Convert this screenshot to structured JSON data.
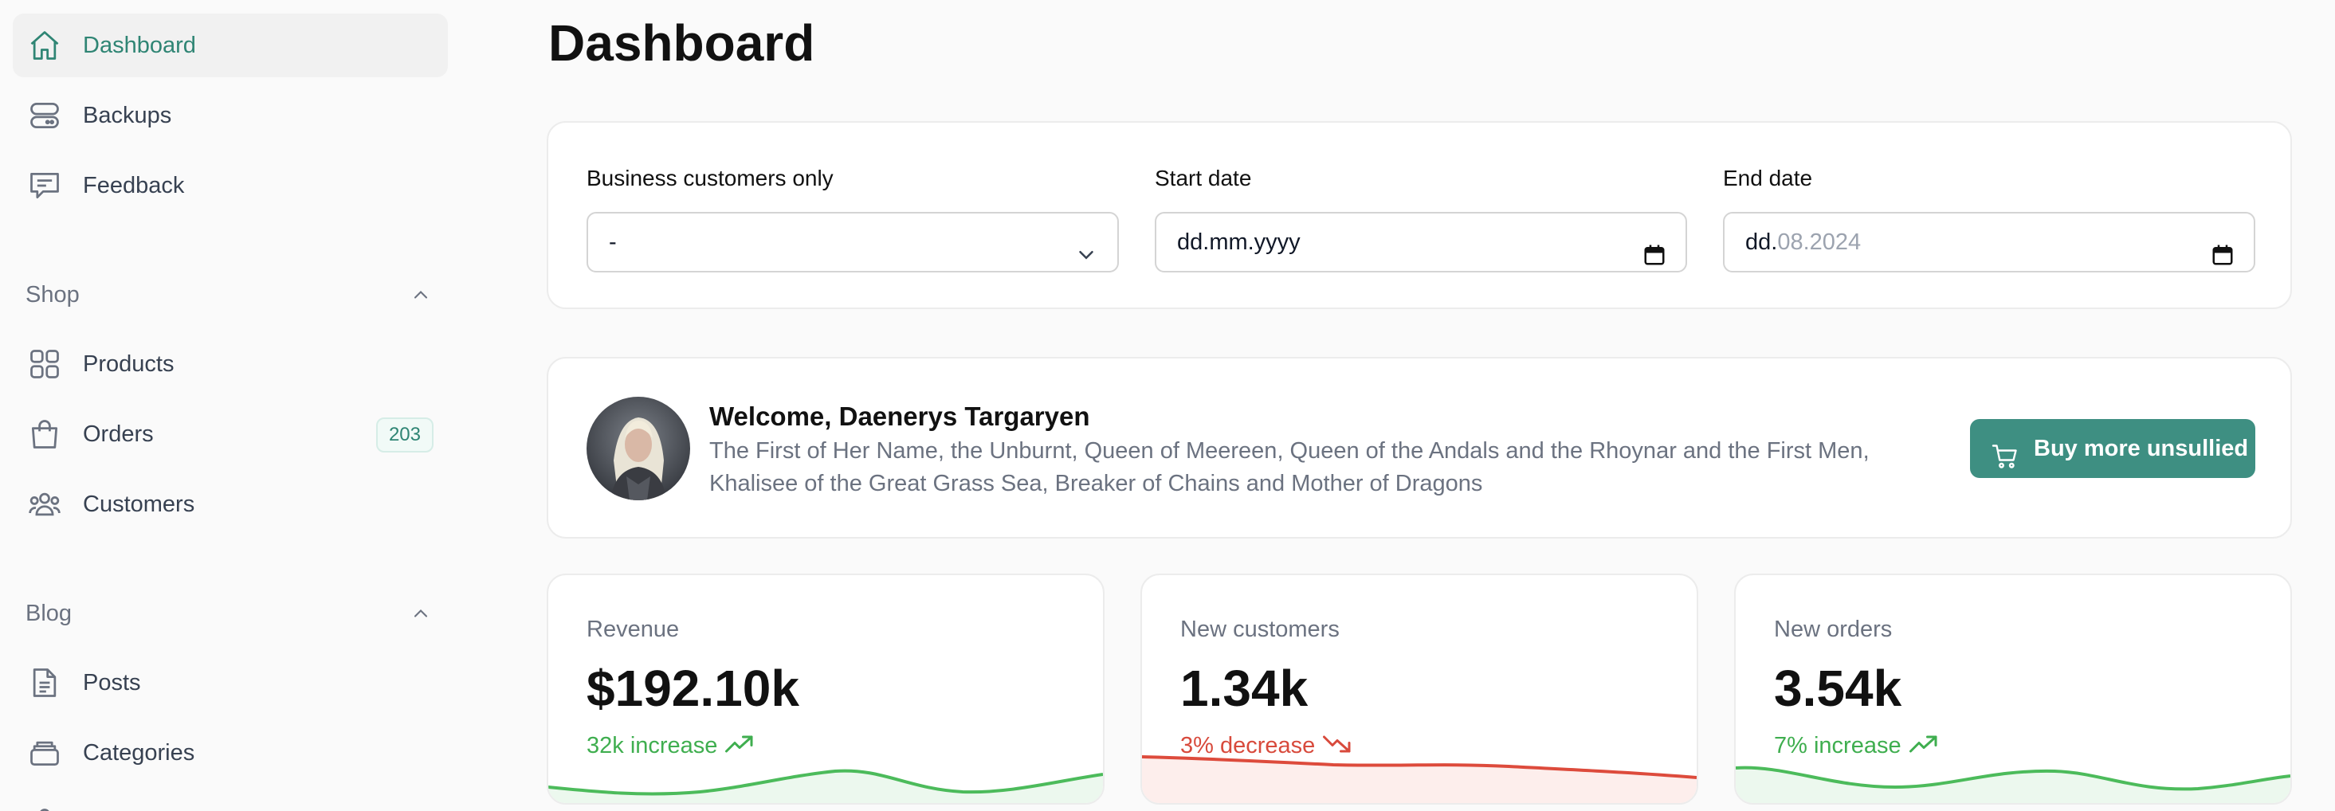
{
  "sidebar": {
    "items": [
      {
        "label": "Dashboard",
        "icon": "home-icon",
        "active": true
      },
      {
        "label": "Backups",
        "icon": "server-icon"
      },
      {
        "label": "Feedback",
        "icon": "chat-icon"
      }
    ],
    "shop": {
      "title": "Shop",
      "items": [
        {
          "label": "Products",
          "icon": "grid-icon"
        },
        {
          "label": "Orders",
          "icon": "shopping-bag-icon",
          "badge": "203"
        },
        {
          "label": "Customers",
          "icon": "users-icon"
        }
      ]
    },
    "blog": {
      "title": "Blog",
      "items": [
        {
          "label": "Posts",
          "icon": "document-icon"
        },
        {
          "label": "Categories",
          "icon": "folder-stack-icon"
        }
      ]
    }
  },
  "page": {
    "title": "Dashboard"
  },
  "filters": {
    "business": {
      "label": "Business customers only",
      "value": "-"
    },
    "start": {
      "label": "Start date",
      "value": "dd.mm.yyyy"
    },
    "end": {
      "label": "End date",
      "value_prefix": "dd.",
      "value_suffix": "08.2024"
    }
  },
  "welcome": {
    "title": "Welcome, Daenerys Targaryen",
    "description": "The First of Her Name, the Unburnt, Queen of Meereen, Queen of the Andals and the Rhoynar and the First Men, Khalisee of the Great Grass Sea, Breaker of Chains and Mother of Dragons",
    "button": "Buy more unsullied"
  },
  "stats": [
    {
      "label": "Revenue",
      "value": "$192.10k",
      "trend": "32k increase",
      "direction": "up",
      "color": "#3fae4f"
    },
    {
      "label": "New customers",
      "value": "1.34k",
      "trend": "3% decrease",
      "direction": "down",
      "color": "#d84a3c"
    },
    {
      "label": "New orders",
      "value": "3.54k",
      "trend": "7% increase",
      "direction": "up",
      "color": "#3fae4f"
    }
  ],
  "colors": {
    "accent": "#3e8f82",
    "active_text": "#2f8574",
    "increase": "#3fae4f",
    "decrease": "#d84a3c"
  }
}
